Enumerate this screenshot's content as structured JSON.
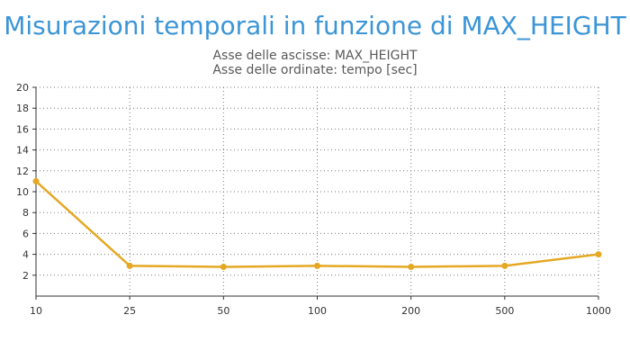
{
  "chart_data": {
    "type": "line",
    "title": "Misurazioni temporali in funzione di MAX_HEIGHT",
    "subtitle_lines": [
      "Asse delle ascisse: MAX_HEIGHT",
      "Asse delle ordinate: tempo [sec]"
    ],
    "categories": [
      "10",
      "25",
      "50",
      "100",
      "200",
      "500",
      "1000"
    ],
    "series": [
      {
        "values": [
          11.0,
          2.9,
          2.8,
          2.9,
          2.8,
          2.9,
          4.0
        ],
        "color": "#e5a823"
      }
    ],
    "ylim": [
      0,
      20
    ],
    "yticks": [
      2,
      4,
      6,
      8,
      10,
      12,
      14,
      16,
      18,
      20
    ],
    "grid": true,
    "legend": "none"
  }
}
